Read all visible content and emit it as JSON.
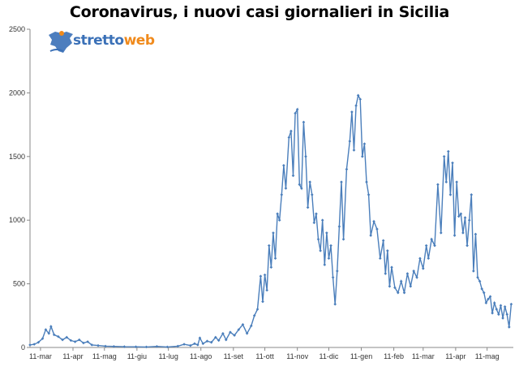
{
  "logo": {
    "part1": "stretto",
    "part2": "web",
    "colors": {
      "part1": "#3a70b7",
      "part2": "#f08a1c"
    }
  },
  "chart_data": {
    "type": "line",
    "title": "Coronavirus, i nuovi casi giornalieri in Sicilia",
    "xlabel": "",
    "ylabel": "",
    "ylim": [
      0,
      2500
    ],
    "yticks": [
      0,
      500,
      1000,
      1500,
      2000,
      2500
    ],
    "xticks": [
      "11-mar",
      "11-apr",
      "11-mag",
      "11-giu",
      "11-lug",
      "11-ago",
      "11-set",
      "11-ott",
      "11-nov",
      "11-dic",
      "11-gen",
      "11-feb",
      "11-mar",
      "11-apr",
      "11-mag"
    ],
    "x_start": "2020-03-01",
    "x_end": "2021-06-05",
    "grid": false,
    "legend": "none",
    "color": "#4a7ebb",
    "series": [
      {
        "name": "",
        "points": [
          [
            "2020-03-01",
            20
          ],
          [
            "2020-03-05",
            25
          ],
          [
            "2020-03-09",
            40
          ],
          [
            "2020-03-13",
            70
          ],
          [
            "2020-03-16",
            140
          ],
          [
            "2020-03-19",
            110
          ],
          [
            "2020-03-21",
            165
          ],
          [
            "2020-03-24",
            100
          ],
          [
            "2020-03-28",
            85
          ],
          [
            "2020-04-01",
            60
          ],
          [
            "2020-04-05",
            80
          ],
          [
            "2020-04-09",
            55
          ],
          [
            "2020-04-13",
            45
          ],
          [
            "2020-04-17",
            60
          ],
          [
            "2020-04-21",
            35
          ],
          [
            "2020-04-25",
            45
          ],
          [
            "2020-04-29",
            20
          ],
          [
            "2020-05-05",
            15
          ],
          [
            "2020-05-12",
            10
          ],
          [
            "2020-05-20",
            8
          ],
          [
            "2020-05-30",
            6
          ],
          [
            "2020-06-10",
            5
          ],
          [
            "2020-06-20",
            4
          ],
          [
            "2020-06-30",
            8
          ],
          [
            "2020-07-10",
            4
          ],
          [
            "2020-07-20",
            10
          ],
          [
            "2020-07-26",
            25
          ],
          [
            "2020-08-01",
            15
          ],
          [
            "2020-08-05",
            30
          ],
          [
            "2020-08-08",
            20
          ],
          [
            "2020-08-10",
            75
          ],
          [
            "2020-08-13",
            30
          ],
          [
            "2020-08-17",
            50
          ],
          [
            "2020-08-21",
            40
          ],
          [
            "2020-08-25",
            80
          ],
          [
            "2020-08-28",
            55
          ],
          [
            "2020-09-01",
            110
          ],
          [
            "2020-09-04",
            60
          ],
          [
            "2020-09-08",
            120
          ],
          [
            "2020-09-12",
            95
          ],
          [
            "2020-09-16",
            140
          ],
          [
            "2020-09-20",
            180
          ],
          [
            "2020-09-24",
            110
          ],
          [
            "2020-09-28",
            170
          ],
          [
            "2020-10-01",
            250
          ],
          [
            "2020-10-04",
            300
          ],
          [
            "2020-10-07",
            560
          ],
          [
            "2020-10-09",
            360
          ],
          [
            "2020-10-11",
            570
          ],
          [
            "2020-10-13",
            450
          ],
          [
            "2020-10-15",
            800
          ],
          [
            "2020-10-17",
            630
          ],
          [
            "2020-10-19",
            900
          ],
          [
            "2020-10-21",
            700
          ],
          [
            "2020-10-23",
            1050
          ],
          [
            "2020-10-25",
            1000
          ],
          [
            "2020-10-27",
            1200
          ],
          [
            "2020-10-29",
            1430
          ],
          [
            "2020-10-31",
            1250
          ],
          [
            "2020-11-03",
            1650
          ],
          [
            "2020-11-05",
            1700
          ],
          [
            "2020-11-07",
            1350
          ],
          [
            "2020-11-09",
            1840
          ],
          [
            "2020-11-11",
            1870
          ],
          [
            "2020-11-13",
            1280
          ],
          [
            "2020-11-15",
            1250
          ],
          [
            "2020-11-17",
            1770
          ],
          [
            "2020-11-19",
            1500
          ],
          [
            "2020-11-21",
            1100
          ],
          [
            "2020-11-23",
            1300
          ],
          [
            "2020-11-25",
            1200
          ],
          [
            "2020-11-27",
            980
          ],
          [
            "2020-11-29",
            1050
          ],
          [
            "2020-12-01",
            850
          ],
          [
            "2020-12-03",
            760
          ],
          [
            "2020-12-05",
            1000
          ],
          [
            "2020-12-07",
            650
          ],
          [
            "2020-12-09",
            900
          ],
          [
            "2020-12-11",
            700
          ],
          [
            "2020-12-13",
            800
          ],
          [
            "2020-12-15",
            550
          ],
          [
            "2020-12-17",
            340
          ],
          [
            "2020-12-19",
            600
          ],
          [
            "2020-12-21",
            950
          ],
          [
            "2020-12-23",
            1300
          ],
          [
            "2020-12-25",
            850
          ],
          [
            "2020-12-28",
            1400
          ],
          [
            "2020-12-31",
            1620
          ],
          [
            "2021-01-02",
            1850
          ],
          [
            "2021-01-04",
            1550
          ],
          [
            "2021-01-06",
            1900
          ],
          [
            "2021-01-08",
            1980
          ],
          [
            "2021-01-10",
            1950
          ],
          [
            "2021-01-12",
            1500
          ],
          [
            "2021-01-14",
            1600
          ],
          [
            "2021-01-16",
            1300
          ],
          [
            "2021-01-18",
            1200
          ],
          [
            "2021-01-20",
            880
          ],
          [
            "2021-01-23",
            990
          ],
          [
            "2021-01-26",
            930
          ],
          [
            "2021-01-29",
            700
          ],
          [
            "2021-02-01",
            840
          ],
          [
            "2021-02-03",
            580
          ],
          [
            "2021-02-05",
            760
          ],
          [
            "2021-02-07",
            480
          ],
          [
            "2021-02-09",
            630
          ],
          [
            "2021-02-12",
            470
          ],
          [
            "2021-02-15",
            430
          ],
          [
            "2021-02-18",
            520
          ],
          [
            "2021-02-21",
            430
          ],
          [
            "2021-02-24",
            580
          ],
          [
            "2021-02-27",
            480
          ],
          [
            "2021-03-02",
            600
          ],
          [
            "2021-03-05",
            550
          ],
          [
            "2021-03-08",
            700
          ],
          [
            "2021-03-11",
            620
          ],
          [
            "2021-03-14",
            800
          ],
          [
            "2021-03-16",
            700
          ],
          [
            "2021-03-19",
            850
          ],
          [
            "2021-03-22",
            800
          ],
          [
            "2021-03-25",
            1280
          ],
          [
            "2021-03-28",
            900
          ],
          [
            "2021-03-31",
            1500
          ],
          [
            "2021-04-02",
            1300
          ],
          [
            "2021-04-04",
            1540
          ],
          [
            "2021-04-06",
            1200
          ],
          [
            "2021-04-08",
            1450
          ],
          [
            "2021-04-10",
            880
          ],
          [
            "2021-04-12",
            1300
          ],
          [
            "2021-04-14",
            1030
          ],
          [
            "2021-04-16",
            1050
          ],
          [
            "2021-04-18",
            900
          ],
          [
            "2021-04-20",
            1020
          ],
          [
            "2021-04-22",
            800
          ],
          [
            "2021-04-24",
            1000
          ],
          [
            "2021-04-26",
            1200
          ],
          [
            "2021-04-28",
            600
          ],
          [
            "2021-04-30",
            890
          ],
          [
            "2021-05-02",
            550
          ],
          [
            "2021-05-04",
            520
          ],
          [
            "2021-05-06",
            460
          ],
          [
            "2021-05-08",
            430
          ],
          [
            "2021-05-10",
            350
          ],
          [
            "2021-05-12",
            380
          ],
          [
            "2021-05-14",
            400
          ],
          [
            "2021-05-16",
            270
          ],
          [
            "2021-05-18",
            350
          ],
          [
            "2021-05-20",
            300
          ],
          [
            "2021-05-22",
            260
          ],
          [
            "2021-05-24",
            330
          ],
          [
            "2021-05-26",
            230
          ],
          [
            "2021-05-28",
            320
          ],
          [
            "2021-05-30",
            260
          ],
          [
            "2021-06-01",
            160
          ],
          [
            "2021-06-03",
            340
          ]
        ]
      }
    ]
  }
}
